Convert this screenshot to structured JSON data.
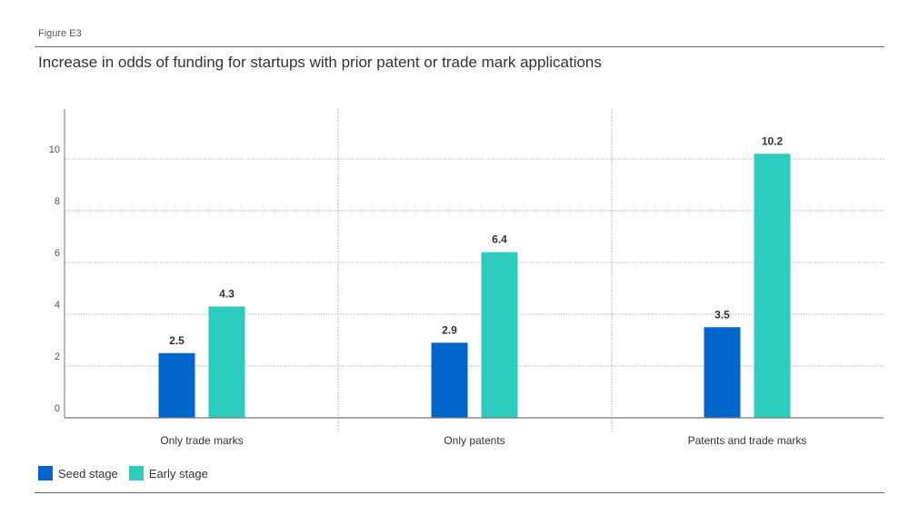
{
  "figure_label": "Figure E3",
  "chart_data": {
    "type": "bar",
    "title": "Increase in odds of funding for startups with prior patent or trade mark applications",
    "categories": [
      "Only trade marks",
      "Only patents",
      "Patents and trade marks"
    ],
    "series": [
      {
        "name": "Seed stage",
        "values": [
          2.5,
          2.9,
          3.5
        ],
        "color": "#0066cc"
      },
      {
        "name": "Early stage",
        "values": [
          4.3,
          6.4,
          10.2
        ],
        "color": "#2eccbf"
      }
    ],
    "data_labels": [
      [
        "2.5",
        "2.9",
        "3.5"
      ],
      [
        "4.3",
        "6.4",
        "10.2"
      ]
    ],
    "yticks": [
      "0",
      "2",
      "4",
      "6",
      "8",
      "10"
    ],
    "ylim": [
      0,
      12
    ],
    "xlabel": "",
    "ylabel": "",
    "grid": true,
    "legend_position": "bottom-left"
  }
}
